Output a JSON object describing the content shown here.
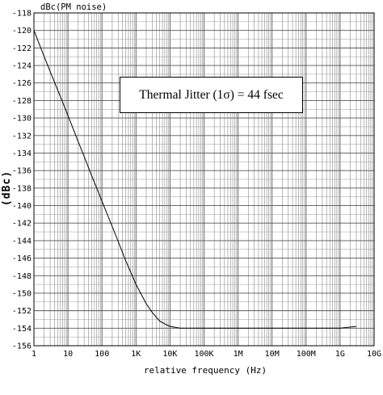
{
  "chart_data": {
    "type": "line",
    "series_title": "dBc(PM noise)",
    "xlabel": "relative frequency (Hz)",
    "ylabel": "(dBc)",
    "x_scale": "log",
    "xlim": [
      1,
      10000000000
    ],
    "ylim": [
      -156,
      -118
    ],
    "grid": true,
    "x_tick_labels": [
      "1",
      "10",
      "100",
      "1K",
      "10K",
      "100K",
      "1M",
      "10M",
      "100M",
      "1G",
      "10G"
    ],
    "y_tick_labels": [
      "-118",
      "-120",
      "-122",
      "-124",
      "-126",
      "-128",
      "-130",
      "-132",
      "-134",
      "-136",
      "-138",
      "-140",
      "-142",
      "-144",
      "-146",
      "-148",
      "-150",
      "-152",
      "-154",
      "-156"
    ],
    "series": [
      {
        "x": [
          1,
          2,
          3,
          5,
          7,
          10,
          20,
          30,
          50,
          70,
          100,
          200,
          300,
          500,
          700,
          1000,
          2000,
          3000,
          5000,
          7000,
          10000,
          20000,
          30000,
          100000,
          1000000,
          10000000,
          100000000,
          1000000000,
          3000000000
        ],
        "y": [
          -120,
          -123,
          -124.7,
          -126.8,
          -128.2,
          -129.7,
          -132.7,
          -134.4,
          -136.6,
          -138.0,
          -139.5,
          -142.4,
          -144.1,
          -146.3,
          -147.6,
          -149.0,
          -151.2,
          -152.2,
          -153.2,
          -153.5,
          -153.8,
          -154.0,
          -154.0,
          -154.0,
          -154.0,
          -154.0,
          -154.0,
          -154.0,
          -153.8
        ]
      }
    ],
    "annotation": "Thermal Jitter (1σ) = 44 fsec"
  }
}
